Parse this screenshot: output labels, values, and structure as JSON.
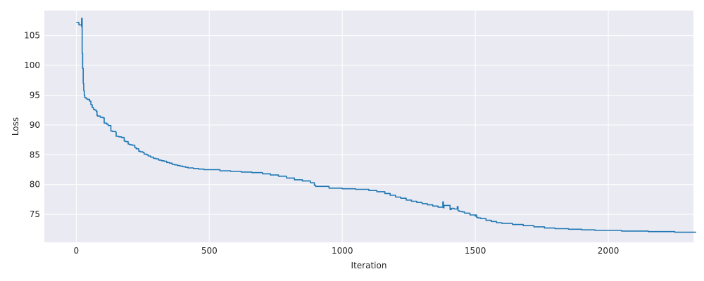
{
  "chart_data": {
    "type": "line",
    "title": "",
    "xlabel": "Iteration",
    "ylabel": "Loss",
    "xlim": [
      -120,
      2320
    ],
    "ylim": [
      70.3,
      109.2
    ],
    "xticks": [
      0,
      500,
      1000,
      1500,
      2000
    ],
    "yticks": [
      75,
      80,
      85,
      90,
      95,
      100,
      105
    ],
    "grid": true,
    "style": "seaborn-darkgrid",
    "colors": {
      "background": "#eaeaf2",
      "grid": "#ffffff",
      "line": "#1f77b4",
      "text": "#262626"
    },
    "series": [
      {
        "name": "",
        "x": [
          0,
          10,
          20,
          20,
          22,
          22,
          24,
          26,
          28,
          30,
          32,
          34,
          36,
          40,
          50,
          55,
          55,
          60,
          65,
          70,
          75,
          78,
          80,
          90,
          100,
          105,
          115,
          120,
          130,
          135,
          148,
          150,
          160,
          170,
          180,
          185,
          195,
          200,
          210,
          220,
          225,
          235,
          240,
          250,
          255,
          265,
          270,
          280,
          290,
          300,
          310,
          320,
          330,
          340,
          350,
          360,
          370,
          380,
          390,
          400,
          410,
          420,
          440,
          460,
          480,
          500,
          540,
          580,
          620,
          660,
          700,
          730,
          760,
          790,
          820,
          850,
          880,
          895,
          900,
          950,
          1000,
          1050,
          1100,
          1130,
          1160,
          1180,
          1200,
          1220,
          1240,
          1260,
          1280,
          1300,
          1320,
          1340,
          1360,
          1375,
          1378,
          1380,
          1382,
          1400,
          1405,
          1410,
          1420,
          1430,
          1432,
          1435,
          1440,
          1450,
          1460,
          1480,
          1500,
          1502,
          1505,
          1510,
          1520,
          1540,
          1560,
          1580,
          1600,
          1640,
          1680,
          1720,
          1760,
          1800,
          1850,
          1900,
          1950,
          2000,
          2050,
          2100,
          2150,
          2200,
          2250,
          2300,
          2330
        ],
        "y": [
          107.2,
          106.8,
          106.5,
          107.9,
          103.5,
          102.0,
          99.5,
          97.0,
          95.8,
          95.0,
          94.6,
          94.6,
          94.5,
          94.3,
          94.0,
          93.8,
          93.4,
          92.9,
          92.6,
          92.5,
          92.3,
          91.6,
          91.5,
          91.3,
          91.2,
          90.3,
          90.1,
          89.9,
          89.0,
          88.9,
          88.8,
          88.1,
          88.0,
          87.9,
          87.3,
          87.2,
          86.8,
          86.7,
          86.6,
          86.2,
          86.0,
          85.6,
          85.5,
          85.4,
          85.1,
          85.0,
          84.8,
          84.6,
          84.4,
          84.3,
          84.1,
          84.0,
          83.9,
          83.7,
          83.6,
          83.4,
          83.3,
          83.2,
          83.1,
          83.0,
          82.9,
          82.8,
          82.7,
          82.6,
          82.5,
          82.5,
          82.3,
          82.2,
          82.1,
          82.0,
          81.8,
          81.6,
          81.4,
          81.1,
          80.8,
          80.6,
          80.3,
          79.9,
          79.7,
          79.4,
          79.3,
          79.2,
          79.0,
          78.8,
          78.5,
          78.2,
          77.9,
          77.7,
          77.4,
          77.2,
          77.0,
          76.8,
          76.6,
          76.4,
          76.2,
          76.2,
          77.1,
          76.1,
          76.5,
          76.5,
          75.8,
          76.0,
          75.9,
          75.9,
          76.3,
          75.6,
          75.5,
          75.4,
          75.2,
          74.9,
          74.7,
          74.9,
          74.5,
          74.4,
          74.3,
          74.0,
          73.8,
          73.6,
          73.5,
          73.3,
          73.1,
          72.9,
          72.7,
          72.6,
          72.5,
          72.4,
          72.3,
          72.3,
          72.2,
          72.2,
          72.1,
          72.1,
          72.0,
          72.0,
          72.0
        ]
      }
    ]
  }
}
